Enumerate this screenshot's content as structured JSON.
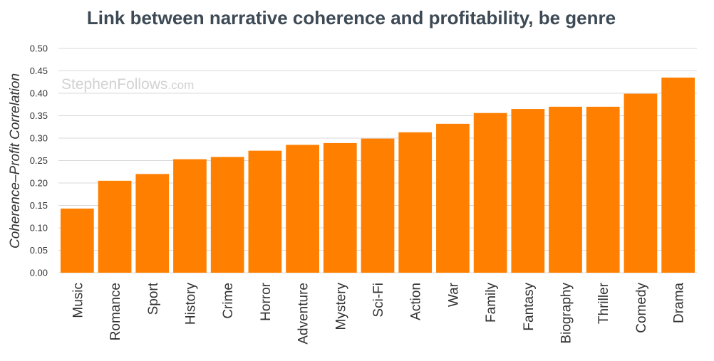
{
  "chart_data": {
    "type": "bar",
    "title": "Link between narrative coherence and profitability, be genre",
    "ylabel": "Coherence–Profit Correlation",
    "xlabel": "",
    "ylim": [
      0,
      0.5
    ],
    "yticks": [
      "0.00",
      "0.05",
      "0.10",
      "0.15",
      "0.20",
      "0.25",
      "0.30",
      "0.35",
      "0.40",
      "0.45",
      "0.50"
    ],
    "grid": true,
    "bar_color": "#ff7f00",
    "categories": [
      "Music",
      "Romance",
      "Sport",
      "History",
      "Crime",
      "Horror",
      "Adventure",
      "Mystery",
      "Sci-Fi",
      "Action",
      "War",
      "Family",
      "Fantasy",
      "Biography",
      "Thriller",
      "Comedy",
      "Drama"
    ],
    "values": [
      0.143,
      0.205,
      0.22,
      0.253,
      0.258,
      0.272,
      0.285,
      0.289,
      0.299,
      0.313,
      0.332,
      0.356,
      0.365,
      0.37,
      0.37,
      0.399,
      0.435
    ]
  },
  "watermark": {
    "name": "StephenFollows",
    "suffix": ".com"
  }
}
